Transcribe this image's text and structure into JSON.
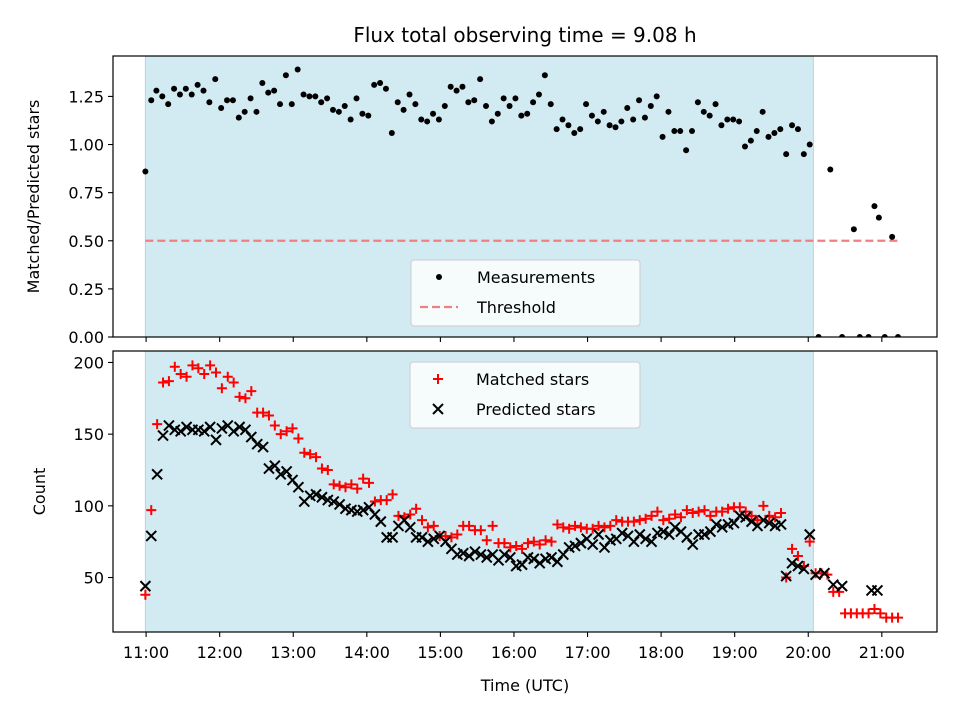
{
  "chart_data": {
    "type": "scatter",
    "title": "Flux total observing time = 9.08 h",
    "xlabel": "Time (UTC)",
    "x_unit": "hours UTC",
    "xlim": [
      10.55,
      21.75
    ],
    "x_ticks": [
      11,
      12,
      13,
      14,
      15,
      16,
      17,
      18,
      19,
      20,
      21
    ],
    "x_tick_labels": [
      "11:00",
      "12:00",
      "13:00",
      "14:00",
      "15:00",
      "16:00",
      "17:00",
      "18:00",
      "19:00",
      "20:00",
      "21:00"
    ],
    "observing_window": [
      10.99,
      20.07
    ],
    "colors": {
      "window": "#add8e6",
      "measurement": "#000000",
      "threshold": "#f08080",
      "matched": "#ff0000",
      "predicted": "#000000"
    },
    "panels": [
      {
        "name": "ratio",
        "ylabel": "Matched/Predicted stars",
        "ylim": [
          0,
          1.46
        ],
        "y_ticks": [
          0,
          0.25,
          0.5,
          0.75,
          1.0,
          1.25
        ],
        "y_tick_labels": [
          "0.00",
          "0.25",
          "0.50",
          "0.75",
          "1.00",
          "1.25"
        ],
        "threshold": {
          "value": 0.5,
          "x_range": [
            10.99,
            21.25
          ]
        },
        "legend": {
          "position": "bottom-center",
          "entries": [
            "Measurements",
            "Threshold"
          ]
        },
        "series": [
          {
            "name": "Measurements",
            "marker": "dot",
            "x": [
              10.99,
              11.07,
              11.14,
              11.22,
              11.3,
              11.38,
              11.46,
              11.54,
              11.62,
              11.7,
              11.78,
              11.86,
              11.94,
              12.02,
              12.1,
              12.18,
              12.26,
              12.34,
              12.42,
              12.5,
              12.58,
              12.66,
              12.74,
              12.82,
              12.9,
              12.98,
              13.06,
              13.14,
              13.22,
              13.3,
              13.38,
              13.46,
              13.54,
              13.62,
              13.7,
              13.78,
              13.86,
              13.94,
              14.02,
              14.1,
              14.18,
              14.26,
              14.34,
              14.42,
              14.5,
              14.58,
              14.66,
              14.74,
              14.82,
              14.9,
              14.98,
              15.06,
              15.14,
              15.22,
              15.3,
              15.38,
              15.46,
              15.54,
              15.62,
              15.7,
              15.78,
              15.86,
              15.94,
              16.02,
              16.1,
              16.18,
              16.26,
              16.34,
              16.42,
              16.5,
              16.58,
              16.66,
              16.74,
              16.82,
              16.9,
              16.98,
              17.06,
              17.14,
              17.22,
              17.3,
              17.38,
              17.46,
              17.54,
              17.62,
              17.7,
              17.78,
              17.86,
              17.94,
              18.02,
              18.1,
              18.18,
              18.26,
              18.34,
              18.42,
              18.5,
              18.58,
              18.66,
              18.74,
              18.82,
              18.9,
              18.98,
              19.06,
              19.14,
              19.22,
              19.3,
              19.38,
              19.46,
              19.54,
              19.62,
              19.7,
              19.78,
              19.86,
              19.94,
              20.02,
              20.14,
              20.3,
              20.46,
              20.62,
              20.7,
              20.82,
              20.9,
              20.96,
              21.04,
              21.14,
              21.22
            ],
            "y": [
              0.86,
              1.23,
              1.28,
              1.25,
              1.21,
              1.29,
              1.26,
              1.29,
              1.26,
              1.31,
              1.28,
              1.22,
              1.34,
              1.19,
              1.23,
              1.23,
              1.14,
              1.17,
              1.24,
              1.17,
              1.32,
              1.27,
              1.28,
              1.21,
              1.36,
              1.21,
              1.39,
              1.26,
              1.25,
              1.25,
              1.22,
              1.24,
              1.18,
              1.17,
              1.2,
              1.13,
              1.24,
              1.16,
              1.15,
              1.31,
              1.32,
              1.29,
              1.06,
              1.22,
              1.18,
              1.26,
              1.21,
              1.13,
              1.12,
              1.16,
              1.13,
              1.2,
              1.3,
              1.28,
              1.3,
              1.22,
              1.23,
              1.34,
              1.2,
              1.12,
              1.16,
              1.24,
              1.2,
              1.24,
              1.15,
              1.16,
              1.22,
              1.26,
              1.36,
              1.21,
              1.08,
              1.13,
              1.1,
              1.06,
              1.08,
              1.21,
              1.15,
              1.12,
              1.17,
              1.1,
              1.09,
              1.12,
              1.19,
              1.13,
              1.23,
              1.14,
              1.2,
              1.25,
              1.04,
              1.17,
              1.07,
              1.07,
              0.97,
              1.07,
              1.22,
              1.17,
              1.15,
              1.21,
              1.1,
              1.13,
              1.13,
              1.12,
              0.99,
              1.02,
              1.07,
              1.17,
              1.04,
              1.06,
              1.08,
              0.95,
              1.1,
              1.08,
              0.95,
              1.0,
              0.0,
              0.87,
              0.0,
              0.56,
              0.0,
              0.0,
              0.68,
              0.62,
              0.0,
              0.52,
              0.0
            ]
          }
        ]
      },
      {
        "name": "counts",
        "ylabel": "Count",
        "ylim": [
          12,
          208
        ],
        "y_ticks": [
          50,
          100,
          150,
          200
        ],
        "y_tick_labels": [
          "50",
          "100",
          "150",
          "200"
        ],
        "legend": {
          "position": "top-center",
          "entries": [
            "Matched stars",
            "Predicted stars"
          ]
        },
        "series": [
          {
            "name": "Matched stars",
            "marker": "plus",
            "x": [
              10.99,
              11.07,
              11.15,
              11.23,
              11.31,
              11.39,
              11.47,
              11.55,
              11.63,
              11.71,
              11.79,
              11.87,
              11.95,
              12.03,
              12.11,
              12.19,
              12.27,
              12.35,
              12.43,
              12.51,
              12.59,
              12.67,
              12.75,
              12.83,
              12.91,
              12.99,
              13.07,
              13.15,
              13.23,
              13.31,
              13.39,
              13.47,
              13.55,
              13.63,
              13.71,
              13.79,
              13.87,
              13.95,
              14.03,
              14.11,
              14.19,
              14.27,
              14.35,
              14.43,
              14.51,
              14.59,
              14.67,
              14.75,
              14.83,
              14.91,
              14.99,
              15.07,
              15.15,
              15.23,
              15.31,
              15.39,
              15.47,
              15.55,
              15.63,
              15.71,
              15.79,
              15.87,
              15.95,
              16.03,
              16.11,
              16.19,
              16.27,
              16.35,
              16.43,
              16.51,
              16.59,
              16.67,
              16.75,
              16.83,
              16.91,
              16.99,
              17.07,
              17.15,
              17.23,
              17.31,
              17.39,
              17.47,
              17.55,
              17.63,
              17.71,
              17.79,
              17.87,
              17.95,
              18.03,
              18.11,
              18.19,
              18.27,
              18.35,
              18.43,
              18.51,
              18.59,
              18.67,
              18.75,
              18.83,
              18.91,
              18.99,
              19.07,
              19.15,
              19.23,
              19.31,
              19.39,
              19.47,
              19.55,
              19.63,
              19.7,
              19.78,
              19.86,
              19.94,
              20.02,
              20.1,
              20.18,
              20.26,
              20.34,
              20.42,
              20.5,
              20.58,
              20.66,
              20.74,
              20.82,
              20.9,
              20.98,
              21.06,
              21.14,
              21.22
            ],
            "y": [
              38,
              97,
              157,
              186,
              187,
              197,
              192,
              190,
              198,
              196,
              192,
              198,
              193,
              182,
              190,
              186,
              176,
              175,
              180,
              165,
              165,
              163,
              156,
              150,
              152,
              154,
              147,
              137,
              136,
              134,
              126,
              125,
              115,
              114,
              113,
              115,
              112,
              119,
              116,
              103,
              104,
              104,
              108,
              93,
              92,
              94,
              98,
              90,
              85,
              86,
              79,
              79,
              78,
              80,
              86,
              86,
              83,
              83,
              76,
              86,
              74,
              74,
              71,
              72,
              70,
              74,
              75,
              73,
              76,
              75,
              87,
              85,
              84,
              86,
              85,
              84,
              84,
              86,
              85,
              86,
              90,
              89,
              89,
              89,
              90,
              91,
              93,
              96,
              90,
              91,
              94,
              92,
              97,
              95,
              96,
              97,
              93,
              96,
              96,
              98,
              99,
              99,
              96,
              93,
              90,
              100,
              93,
              92,
              95,
              50,
              70,
              65,
              58,
              75,
              53,
              53,
              52,
              40,
              40,
              25,
              25,
              25,
              25,
              25,
              28,
              25,
              22,
              22,
              22
            ]
          },
          {
            "name": "Predicted stars",
            "marker": "x",
            "x": [
              10.99,
              11.07,
              11.15,
              11.23,
              11.31,
              11.39,
              11.47,
              11.55,
              11.63,
              11.71,
              11.79,
              11.87,
              11.95,
              12.03,
              12.11,
              12.19,
              12.27,
              12.35,
              12.43,
              12.51,
              12.59,
              12.67,
              12.75,
              12.83,
              12.91,
              12.99,
              13.07,
              13.15,
              13.23,
              13.31,
              13.39,
              13.47,
              13.55,
              13.63,
              13.71,
              13.79,
              13.87,
              13.95,
              14.03,
              14.11,
              14.19,
              14.27,
              14.35,
              14.43,
              14.51,
              14.59,
              14.67,
              14.75,
              14.83,
              14.91,
              14.99,
              15.07,
              15.15,
              15.23,
              15.31,
              15.39,
              15.47,
              15.55,
              15.63,
              15.71,
              15.79,
              15.87,
              15.95,
              16.03,
              16.11,
              16.19,
              16.27,
              16.35,
              16.43,
              16.51,
              16.59,
              16.67,
              16.75,
              16.83,
              16.91,
              16.99,
              17.07,
              17.15,
              17.23,
              17.31,
              17.39,
              17.47,
              17.55,
              17.63,
              17.71,
              17.79,
              17.87,
              17.95,
              18.03,
              18.11,
              18.19,
              18.27,
              18.35,
              18.43,
              18.51,
              18.59,
              18.67,
              18.75,
              18.83,
              18.91,
              18.99,
              19.07,
              19.15,
              19.23,
              19.31,
              19.39,
              19.47,
              19.55,
              19.63,
              19.7,
              19.78,
              19.86,
              19.94,
              20.02,
              20.1,
              20.22,
              20.34,
              20.46,
              20.86,
              20.94
            ],
            "y": [
              44,
              79,
              122,
              149,
              156,
              153,
              152,
              155,
              153,
              153,
              152,
              155,
              146,
              154,
              156,
              152,
              155,
              153,
              148,
              143,
              141,
              126,
              128,
              122,
              124,
              118,
              113,
              103,
              107,
              108,
              106,
              104,
              103,
              101,
              98,
              97,
              96,
              97,
              99,
              94,
              89,
              78,
              78,
              86,
              90,
              85,
              78,
              78,
              75,
              77,
              79,
              75,
              70,
              66,
              67,
              65,
              68,
              66,
              64,
              66,
              62,
              66,
              64,
              58,
              59,
              64,
              63,
              60,
              63,
              64,
              61,
              66,
              71,
              72,
              74,
              77,
              73,
              80,
              71,
              76,
              77,
              81,
              79,
              75,
              80,
              77,
              75,
              81,
              82,
              80,
              85,
              82,
              78,
              73,
              80,
              80,
              82,
              87,
              85,
              87,
              88,
              93,
              92,
              89,
              86,
              90,
              88,
              86,
              87,
              51,
              60,
              58,
              56,
              80,
              52,
              53,
              45,
              44,
              41,
              41
            ]
          }
        ]
      }
    ]
  }
}
